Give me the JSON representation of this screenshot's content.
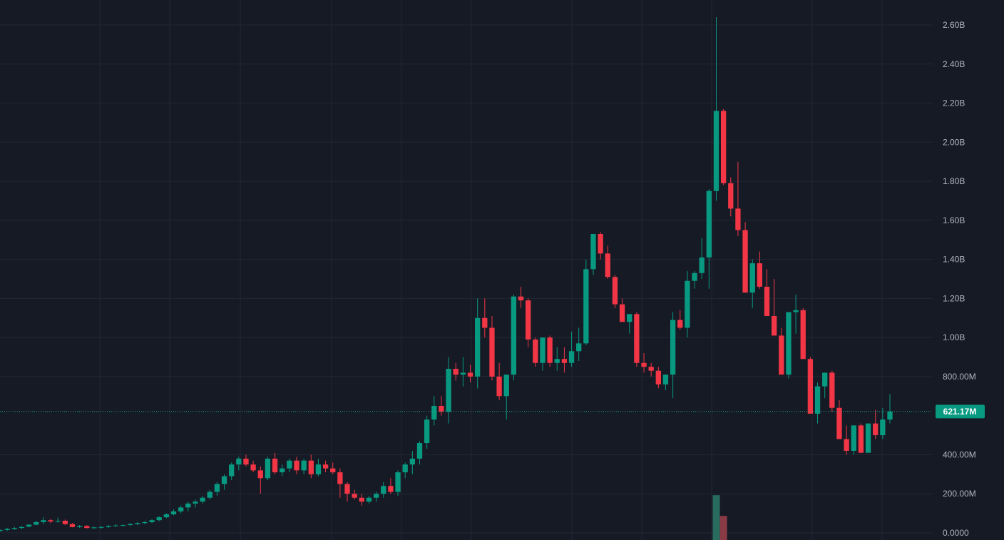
{
  "colors": {
    "background": "#161a25",
    "grid": "#232734",
    "up": "#089981",
    "down": "#f23645",
    "up_volume": "#2a6b5f",
    "down_volume": "#8a3a45",
    "axis_text": "#b2b5be",
    "price_line": "#22ab94"
  },
  "chart_data": {
    "type": "candlestick",
    "y_axis": {
      "position": "right",
      "min": 0,
      "max": 2600000000,
      "ticks": [
        {
          "value": 2600000000,
          "label": "2.60B"
        },
        {
          "value": 2400000000,
          "label": "2.40B"
        },
        {
          "value": 2200000000,
          "label": "2.20B"
        },
        {
          "value": 2000000000,
          "label": "2.00B"
        },
        {
          "value": 1800000000,
          "label": "1.80B"
        },
        {
          "value": 1600000000,
          "label": "1.60B"
        },
        {
          "value": 1400000000,
          "label": "1.40B"
        },
        {
          "value": 1200000000,
          "label": "1.20B"
        },
        {
          "value": 1000000000,
          "label": "1.00B"
        },
        {
          "value": 800000000,
          "label": "800.00M"
        },
        {
          "value": 400000000,
          "label": "400.00M"
        },
        {
          "value": 200000000,
          "label": "200.00M"
        },
        {
          "value": 0,
          "label": "0.0000"
        }
      ]
    },
    "grid": true,
    "current_price": {
      "value": 621170000,
      "label": "621.17M"
    },
    "candles_unit": "millions",
    "candles": [
      [
        10,
        18,
        5,
        15
      ],
      [
        15,
        25,
        10,
        20
      ],
      [
        20,
        30,
        15,
        25
      ],
      [
        25,
        35,
        20,
        30
      ],
      [
        32,
        45,
        28,
        42
      ],
      [
        42,
        62,
        38,
        55
      ],
      [
        55,
        80,
        45,
        65
      ],
      [
        65,
        72,
        50,
        58
      ],
      [
        58,
        78,
        52,
        62
      ],
      [
        62,
        68,
        40,
        45
      ],
      [
        45,
        50,
        28,
        30
      ],
      [
        30,
        40,
        25,
        35
      ],
      [
        35,
        40,
        22,
        25
      ],
      [
        25,
        32,
        20,
        28
      ],
      [
        28,
        35,
        22,
        30
      ],
      [
        30,
        40,
        25,
        35
      ],
      [
        35,
        45,
        30,
        38
      ],
      [
        38,
        45,
        32,
        40
      ],
      [
        40,
        50,
        35,
        45
      ],
      [
        45,
        55,
        40,
        50
      ],
      [
        50,
        60,
        45,
        55
      ],
      [
        55,
        70,
        50,
        65
      ],
      [
        65,
        85,
        60,
        80
      ],
      [
        80,
        100,
        75,
        95
      ],
      [
        95,
        120,
        90,
        110
      ],
      [
        110,
        140,
        100,
        130
      ],
      [
        130,
        160,
        110,
        150
      ],
      [
        150,
        170,
        130,
        160
      ],
      [
        160,
        190,
        150,
        180
      ],
      [
        180,
        220,
        170,
        210
      ],
      [
        210,
        260,
        190,
        250
      ],
      [
        250,
        300,
        220,
        290
      ],
      [
        290,
        360,
        270,
        350
      ],
      [
        350,
        390,
        320,
        380
      ],
      [
        380,
        400,
        340,
        350
      ],
      [
        350,
        370,
        310,
        320
      ],
      [
        320,
        340,
        200,
        280
      ],
      [
        280,
        390,
        270,
        380
      ],
      [
        380,
        410,
        300,
        310
      ],
      [
        310,
        350,
        290,
        330
      ],
      [
        330,
        380,
        310,
        370
      ],
      [
        370,
        390,
        300,
        320
      ],
      [
        320,
        380,
        300,
        370
      ],
      [
        370,
        400,
        280,
        300
      ],
      [
        300,
        380,
        290,
        350
      ],
      [
        350,
        370,
        310,
        330
      ],
      [
        330,
        360,
        300,
        310
      ],
      [
        310,
        330,
        180,
        250
      ],
      [
        250,
        260,
        160,
        200
      ],
      [
        200,
        220,
        170,
        180
      ],
      [
        180,
        200,
        140,
        160
      ],
      [
        160,
        190,
        150,
        180
      ],
      [
        180,
        210,
        160,
        200
      ],
      [
        200,
        260,
        180,
        240
      ],
      [
        240,
        280,
        200,
        210
      ],
      [
        210,
        320,
        190,
        310
      ],
      [
        310,
        360,
        280,
        350
      ],
      [
        350,
        420,
        300,
        380
      ],
      [
        380,
        470,
        350,
        460
      ],
      [
        460,
        600,
        430,
        580
      ],
      [
        580,
        700,
        550,
        650
      ],
      [
        650,
        700,
        600,
        620
      ],
      [
        620,
        900,
        560,
        840
      ],
      [
        840,
        870,
        780,
        810
      ],
      [
        810,
        900,
        750,
        820
      ],
      [
        820,
        860,
        770,
        800
      ],
      [
        800,
        1200,
        740,
        1100
      ],
      [
        1100,
        1200,
        1000,
        1050
      ],
      [
        1050,
        1110,
        780,
        800
      ],
      [
        800,
        870,
        680,
        700
      ],
      [
        700,
        800,
        580,
        810
      ],
      [
        810,
        1220,
        780,
        1210
      ],
      [
        1210,
        1260,
        1150,
        1190
      ],
      [
        1190,
        1200,
        950,
        990
      ],
      [
        990,
        1000,
        850,
        870
      ],
      [
        870,
        1000,
        830,
        1000
      ],
      [
        1000,
        1010,
        850,
        870
      ],
      [
        870,
        950,
        830,
        890
      ],
      [
        890,
        950,
        820,
        870
      ],
      [
        870,
        1030,
        850,
        930
      ],
      [
        930,
        1050,
        880,
        970
      ],
      [
        970,
        1400,
        960,
        1350
      ],
      [
        1350,
        1530,
        1320,
        1530
      ],
      [
        1530,
        1540,
        1400,
        1430
      ],
      [
        1430,
        1470,
        1300,
        1310
      ],
      [
        1310,
        1320,
        1150,
        1170
      ],
      [
        1170,
        1200,
        1080,
        1080
      ],
      [
        1080,
        1110,
        1020,
        1120
      ],
      [
        1120,
        1130,
        850,
        870
      ],
      [
        870,
        920,
        820,
        850
      ],
      [
        850,
        870,
        800,
        830
      ],
      [
        830,
        850,
        740,
        760
      ],
      [
        760,
        810,
        730,
        810
      ],
      [
        810,
        1130,
        690,
        1090
      ],
      [
        1090,
        1140,
        1040,
        1050
      ],
      [
        1050,
        1340,
        1000,
        1290
      ],
      [
        1290,
        1340,
        1250,
        1330
      ],
      [
        1330,
        1510,
        1300,
        1410
      ],
      [
        1410,
        1760,
        1250,
        1750
      ],
      [
        1750,
        2640,
        1700,
        2160
      ],
      [
        2160,
        2170,
        1780,
        1790
      ],
      [
        1790,
        1820,
        1620,
        1660
      ],
      [
        1660,
        1900,
        1520,
        1550
      ],
      [
        1550,
        1590,
        1230,
        1230
      ],
      [
        1230,
        1400,
        1150,
        1380
      ],
      [
        1380,
        1440,
        1250,
        1260
      ],
      [
        1260,
        1350,
        1170,
        1110
      ],
      [
        1110,
        1300,
        1080,
        1010
      ],
      [
        1010,
        1050,
        880,
        810
      ],
      [
        810,
        1130,
        790,
        1130
      ],
      [
        1130,
        1220,
        1020,
        1140
      ],
      [
        1140,
        1150,
        890,
        890
      ],
      [
        890,
        900,
        610,
        610
      ],
      [
        610,
        770,
        560,
        750
      ],
      [
        750,
        820,
        690,
        820
      ],
      [
        820,
        830,
        620,
        640
      ],
      [
        640,
        680,
        550,
        480
      ],
      [
        480,
        550,
        400,
        420
      ],
      [
        420,
        550,
        400,
        550
      ],
      [
        550,
        560,
        410,
        410
      ],
      [
        410,
        560,
        420,
        560
      ],
      [
        560,
        630,
        480,
        500
      ],
      [
        500,
        640,
        480,
        580
      ],
      [
        580,
        710,
        560,
        621
      ]
    ],
    "volume_bars": [
      {
        "direction": "up",
        "value": 193000000
      },
      {
        "direction": "down",
        "value": 87000000
      }
    ]
  }
}
